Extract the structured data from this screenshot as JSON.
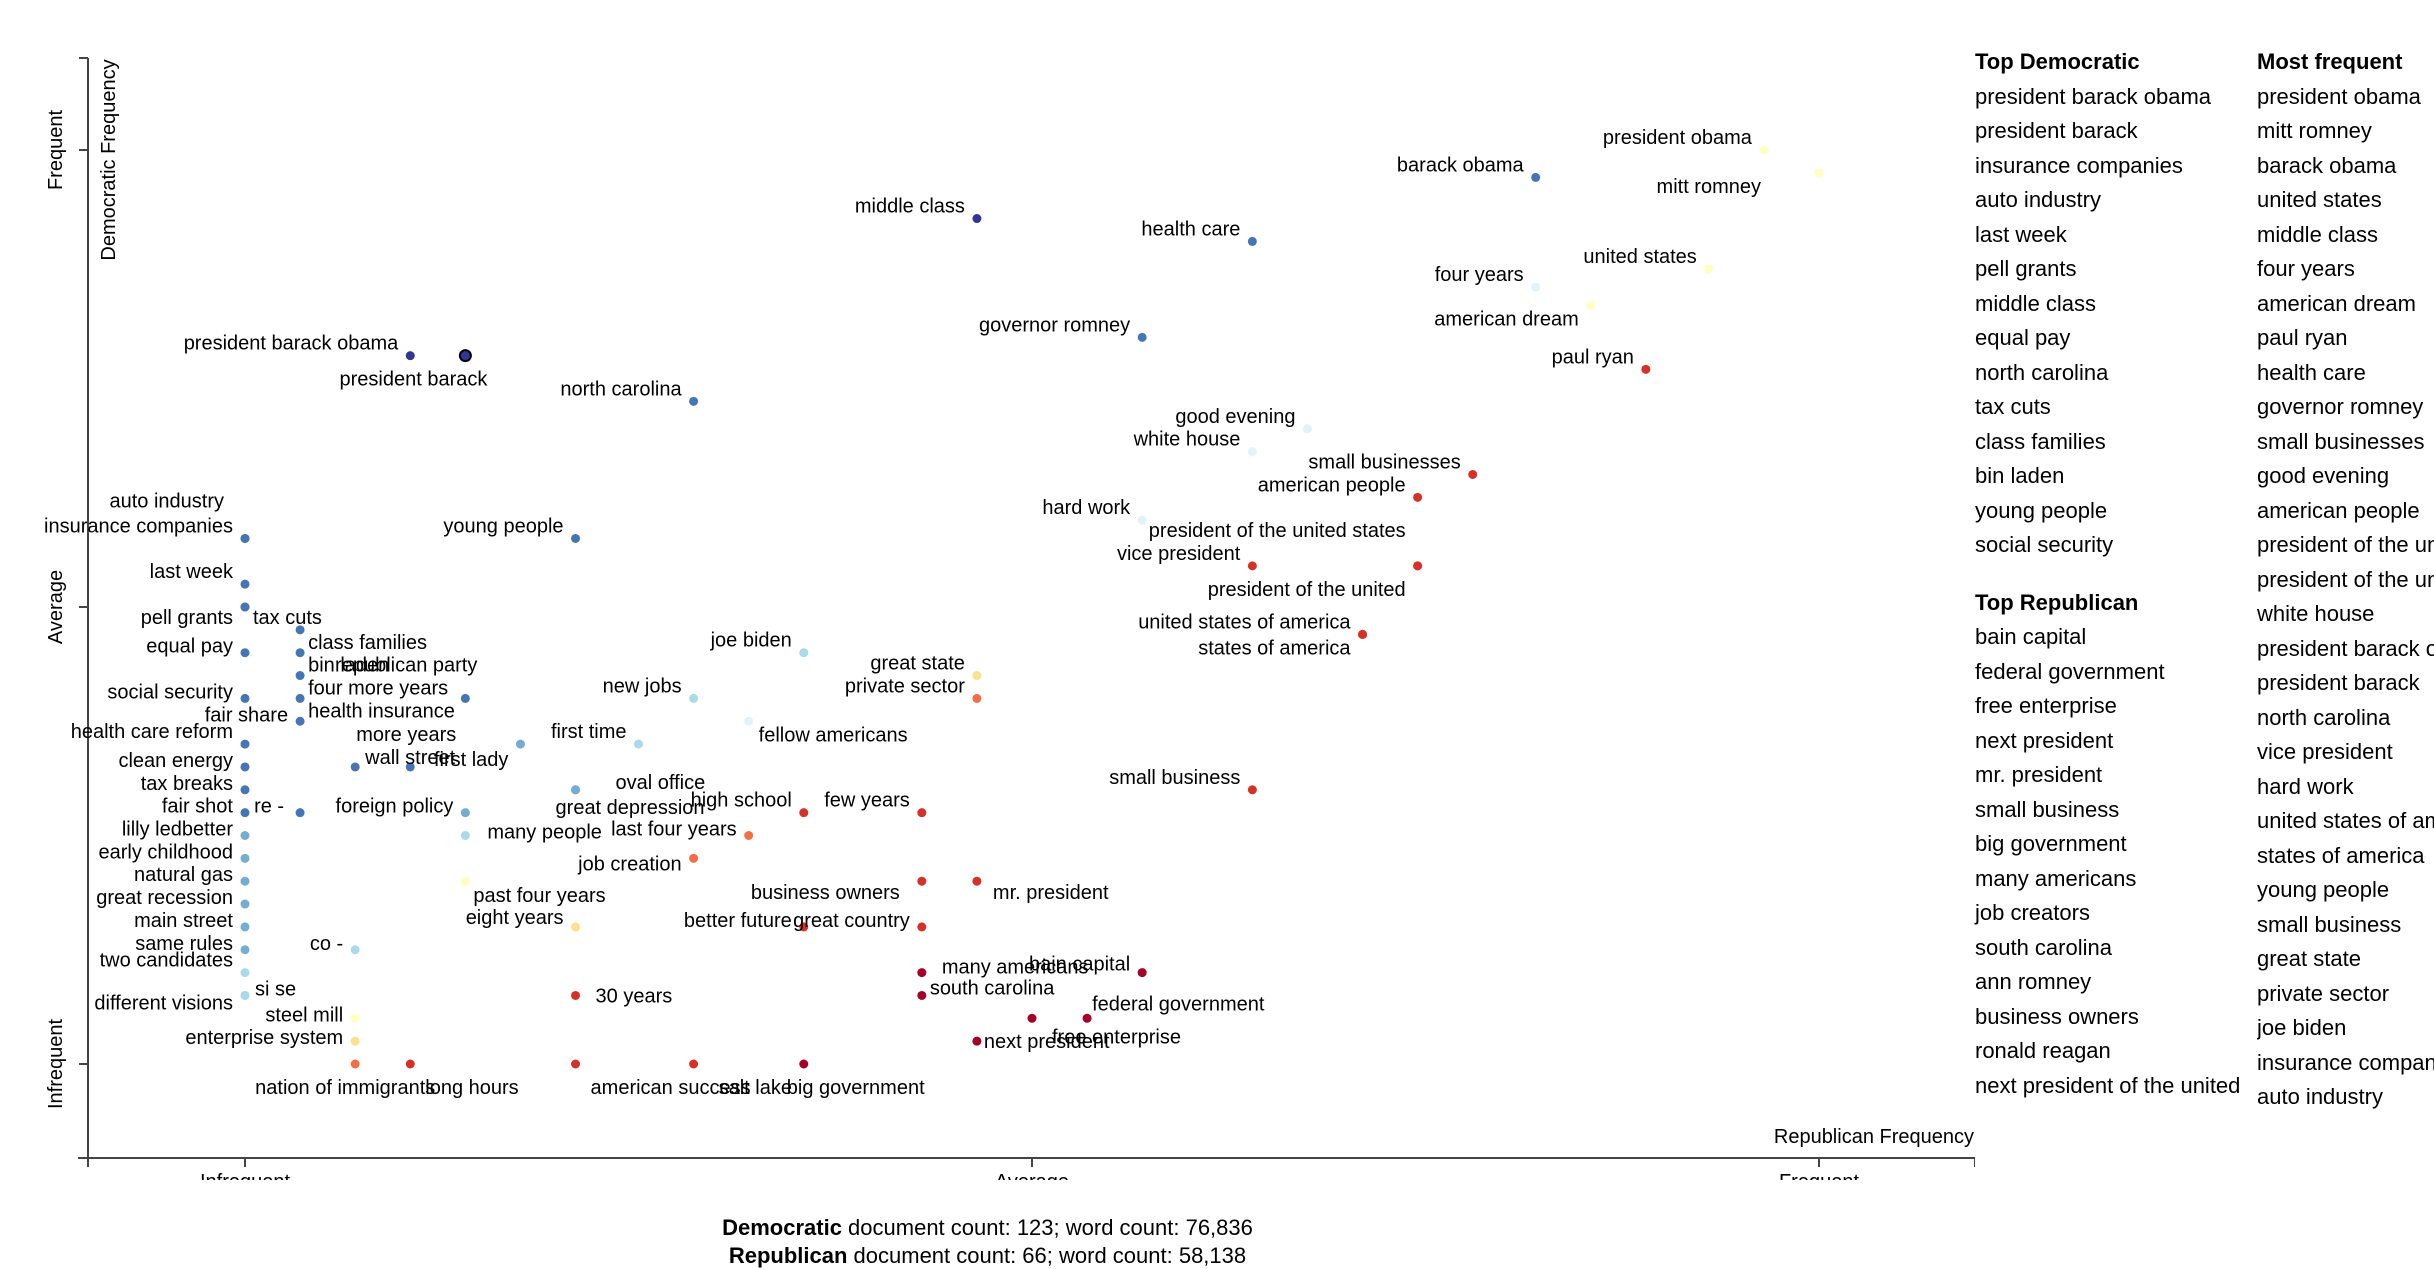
{
  "chart_data": {
    "type": "scatter",
    "x_axis_label": "Republican Frequency",
    "y_axis_label": "Democratic Frequency",
    "x_ticks": [
      "Infrequent",
      "Average",
      "Frequent"
    ],
    "y_ticks": [
      "Frequent",
      "Average",
      "Infrequent"
    ],
    "xlim": [
      0,
      1
    ],
    "ylim": [
      0,
      1
    ],
    "colors": {
      "axis": "#444444",
      "selected_ring": "#000000",
      "scale": [
        "#313695",
        "#4575b4",
        "#74add1",
        "#abd9e9",
        "#e0f3f8",
        "#ffffbf",
        "#fee090",
        "#fdae61",
        "#f46d43",
        "#d73027",
        "#a50026"
      ]
    },
    "points": [
      {
        "label": "president obama",
        "x": 0.965,
        "y": 1.0,
        "c": 0.47
      },
      {
        "label": "mitt romney",
        "x": 1.0,
        "y": 0.975,
        "c": 0.45
      },
      {
        "label": "barack obama",
        "x": 0.82,
        "y": 0.97,
        "c": 0.12
      },
      {
        "label": "united states",
        "x": 0.93,
        "y": 0.87,
        "c": 0.52
      },
      {
        "label": "four years",
        "x": 0.82,
        "y": 0.85,
        "c": 0.42
      },
      {
        "label": "american dream",
        "x": 0.855,
        "y": 0.83,
        "c": 0.45
      },
      {
        "label": "paul ryan",
        "x": 0.89,
        "y": 0.76,
        "c": 0.93
      },
      {
        "label": "middle class",
        "x": 0.465,
        "y": 0.925,
        "c": 0.04
      },
      {
        "label": "health care",
        "x": 0.64,
        "y": 0.9,
        "c": 0.05
      },
      {
        "label": "governor romney",
        "x": 0.57,
        "y": 0.795,
        "c": 0.08
      },
      {
        "label": "president barack obama",
        "x": 0.105,
        "y": 0.775,
        "c": 0.02
      },
      {
        "label": "president barack",
        "x": 0.14,
        "y": 0.775,
        "c": 0.01,
        "selected": true
      },
      {
        "label": "north carolina",
        "x": 0.285,
        "y": 0.725,
        "c": 0.06
      },
      {
        "label": "good evening",
        "x": 0.675,
        "y": 0.695,
        "c": 0.42
      },
      {
        "label": "white house",
        "x": 0.64,
        "y": 0.67,
        "c": 0.4
      },
      {
        "label": "small businesses",
        "x": 0.78,
        "y": 0.645,
        "c": 0.9
      },
      {
        "label": "american people",
        "x": 0.745,
        "y": 0.62,
        "c": 0.9
      },
      {
        "label": "hard work",
        "x": 0.57,
        "y": 0.595,
        "c": 0.38
      },
      {
        "label": "president of the united states",
        "x": 0.745,
        "y": 0.545,
        "c": 0.88
      },
      {
        "label": "vice president",
        "x": 0.64,
        "y": 0.545,
        "c": 0.85
      },
      {
        "label": "president of the united",
        "x": 0.745,
        "y": 0.545,
        "c": 0.88
      },
      {
        "label": "united states of america",
        "x": 0.71,
        "y": 0.47,
        "c": 0.93
      },
      {
        "label": "states of america",
        "x": 0.71,
        "y": 0.47,
        "c": 0.93
      },
      {
        "label": "auto industry",
        "x": 0.0,
        "y": 0.575,
        "c": 0.05
      },
      {
        "label": "insurance companies",
        "x": 0.0,
        "y": 0.575,
        "c": 0.05
      },
      {
        "label": "young people",
        "x": 0.21,
        "y": 0.575,
        "c": 0.07
      },
      {
        "label": "last week",
        "x": 0.0,
        "y": 0.525,
        "c": 0.06
      },
      {
        "label": "pell grants",
        "x": 0.0,
        "y": 0.5,
        "c": 0.07
      },
      {
        "label": "tax cuts",
        "x": 0.0,
        "y": 0.5,
        "c": 0.07
      },
      {
        "label": "equal pay",
        "x": 0.0,
        "y": 0.45,
        "c": 0.08
      },
      {
        "label": "class families",
        "x": 0.035,
        "y": 0.475,
        "c": 0.08
      },
      {
        "label": "bin laden",
        "x": 0.035,
        "y": 0.45,
        "c": 0.08
      },
      {
        "label": "four more years",
        "x": 0.035,
        "y": 0.425,
        "c": 0.1
      },
      {
        "label": "health insurance",
        "x": 0.035,
        "y": 0.4,
        "c": 0.1
      },
      {
        "label": "social security",
        "x": 0.0,
        "y": 0.4,
        "c": 0.09
      },
      {
        "label": "fair share",
        "x": 0.035,
        "y": 0.375,
        "c": 0.1
      },
      {
        "label": "republican party",
        "x": 0.14,
        "y": 0.4,
        "c": 0.1
      },
      {
        "label": "joe biden",
        "x": 0.355,
        "y": 0.45,
        "c": 0.25
      },
      {
        "label": "great state",
        "x": 0.465,
        "y": 0.425,
        "c": 0.55
      },
      {
        "label": "private sector",
        "x": 0.465,
        "y": 0.4,
        "c": 0.8
      },
      {
        "label": "new jobs",
        "x": 0.285,
        "y": 0.4,
        "c": 0.25
      },
      {
        "label": "fellow americans",
        "x": 0.32,
        "y": 0.375,
        "c": 0.42
      },
      {
        "label": "health care reform",
        "x": 0.0,
        "y": 0.35,
        "c": 0.1
      },
      {
        "label": "more years",
        "x": 0.105,
        "y": 0.325,
        "c": 0.12
      },
      {
        "label": "first lady",
        "x": 0.175,
        "y": 0.35,
        "c": 0.16
      },
      {
        "label": "first time",
        "x": 0.25,
        "y": 0.35,
        "c": 0.25
      },
      {
        "label": "clean energy",
        "x": 0.0,
        "y": 0.325,
        "c": 0.12
      },
      {
        "label": "wall street",
        "x": 0.07,
        "y": 0.325,
        "c": 0.12
      },
      {
        "label": "tax breaks",
        "x": 0.0,
        "y": 0.3,
        "c": 0.13
      },
      {
        "label": "high school",
        "x": 0.355,
        "y": 0.275,
        "c": 0.85
      },
      {
        "label": "small business",
        "x": 0.64,
        "y": 0.3,
        "c": 0.92
      },
      {
        "label": "fair shot",
        "x": 0.0,
        "y": 0.275,
        "c": 0.14
      },
      {
        "label": "re -",
        "x": 0.035,
        "y": 0.275,
        "c": 0.14
      },
      {
        "label": "foreign policy",
        "x": 0.14,
        "y": 0.275,
        "c": 0.2
      },
      {
        "label": "oval office",
        "x": 0.21,
        "y": 0.3,
        "c": 0.22
      },
      {
        "label": "great depression",
        "x": 0.21,
        "y": 0.3,
        "c": 0.22
      },
      {
        "label": "last four years",
        "x": 0.32,
        "y": 0.25,
        "c": 0.82
      },
      {
        "label": "lilly ledbetter",
        "x": 0.0,
        "y": 0.25,
        "c": 0.15
      },
      {
        "label": "many people",
        "x": 0.14,
        "y": 0.25,
        "c": 0.3
      },
      {
        "label": "job creation",
        "x": 0.285,
        "y": 0.225,
        "c": 0.82
      },
      {
        "label": "few years",
        "x": 0.43,
        "y": 0.275,
        "c": 0.9
      },
      {
        "label": "early childhood",
        "x": 0.0,
        "y": 0.225,
        "c": 0.16
      },
      {
        "label": "mr. president",
        "x": 0.465,
        "y": 0.2,
        "c": 0.93
      },
      {
        "label": "business owners",
        "x": 0.43,
        "y": 0.2,
        "c": 0.93
      },
      {
        "label": "natural gas",
        "x": 0.0,
        "y": 0.2,
        "c": 0.17
      },
      {
        "label": "past four years",
        "x": 0.14,
        "y": 0.2,
        "c": 0.45
      },
      {
        "label": "great recession",
        "x": 0.0,
        "y": 0.175,
        "c": 0.18
      },
      {
        "label": "eight years",
        "x": 0.21,
        "y": 0.15,
        "c": 0.6
      },
      {
        "label": "better future",
        "x": 0.355,
        "y": 0.15,
        "c": 0.9
      },
      {
        "label": "great country",
        "x": 0.43,
        "y": 0.15,
        "c": 0.93
      },
      {
        "label": "main street",
        "x": 0.0,
        "y": 0.15,
        "c": 0.2
      },
      {
        "label": "same rules",
        "x": 0.0,
        "y": 0.125,
        "c": 0.2
      },
      {
        "label": "co -",
        "x": 0.07,
        "y": 0.125,
        "c": 0.3
      },
      {
        "label": "many americans",
        "x": 0.43,
        "y": 0.1,
        "c": 0.95
      },
      {
        "label": "bain capital",
        "x": 0.57,
        "y": 0.1,
        "c": 0.97
      },
      {
        "label": "two candidates",
        "x": 0.0,
        "y": 0.1,
        "c": 0.25
      },
      {
        "label": "si se",
        "x": 0.0,
        "y": 0.075,
        "c": 0.3
      },
      {
        "label": "30 years",
        "x": 0.21,
        "y": 0.075,
        "c": 0.9
      },
      {
        "label": "south carolina",
        "x": 0.43,
        "y": 0.075,
        "c": 0.95
      },
      {
        "label": "different visions",
        "x": 0.0,
        "y": 0.075,
        "c": 0.3
      },
      {
        "label": "federal government",
        "x": 0.535,
        "y": 0.05,
        "c": 0.97
      },
      {
        "label": "steel mill",
        "x": 0.07,
        "y": 0.05,
        "c": 0.45
      },
      {
        "label": "free enterprise",
        "x": 0.5,
        "y": 0.05,
        "c": 0.97
      },
      {
        "label": "enterprise system",
        "x": 0.07,
        "y": 0.025,
        "c": 0.55
      },
      {
        "label": "next president",
        "x": 0.465,
        "y": 0.025,
        "c": 0.95
      },
      {
        "label": "nation of immigrants",
        "x": 0.07,
        "y": 0.0,
        "c": 0.8
      },
      {
        "label": "long hours",
        "x": 0.105,
        "y": 0.0,
        "c": 0.85
      },
      {
        "label": "american success",
        "x": 0.21,
        "y": 0.0,
        "c": 0.88
      },
      {
        "label": "salt lake",
        "x": 0.285,
        "y": 0.0,
        "c": 0.9
      },
      {
        "label": "big government",
        "x": 0.355,
        "y": 0.0,
        "c": 0.95
      }
    ]
  },
  "sidebar": {
    "top_democratic": {
      "heading": "Top Democratic",
      "terms": [
        "president barack obama",
        "president barack",
        "insurance companies",
        "auto industry",
        "last week",
        "pell grants",
        "middle class",
        "equal pay",
        "north carolina",
        "tax cuts",
        "class families",
        "bin laden",
        "young people",
        "social security"
      ]
    },
    "top_republican": {
      "heading": "Top Republican",
      "terms": [
        "bain capital",
        "federal government",
        "free enterprise",
        "next president",
        "mr. president",
        "small business",
        "big government",
        "many americans",
        "job creators",
        "south carolina",
        "ann romney",
        "business owners",
        "ronald reagan",
        "next president of the united"
      ]
    },
    "most_frequent": {
      "heading": "Most frequent",
      "terms": [
        "president obama",
        "mitt romney",
        "barack obama",
        "united states",
        "middle class",
        "four years",
        "american dream",
        "paul ryan",
        "health care",
        "governor romney",
        "small businesses",
        "good evening",
        "american people",
        "president of the united states",
        "president of the united",
        "white house",
        "president barack obama",
        "president barack",
        "north carolina",
        "vice president",
        "hard work",
        "united states of america",
        "states of america",
        "young people",
        "small business",
        "great state",
        "private sector",
        "joe biden",
        "insurance companies",
        "auto industry"
      ]
    }
  },
  "footer": {
    "dem_label": "Democratic",
    "dem_text": " document count: 123; word count: 76,836",
    "rep_label": "Republican",
    "rep_text": " document count: 66; word count: 58,138"
  }
}
